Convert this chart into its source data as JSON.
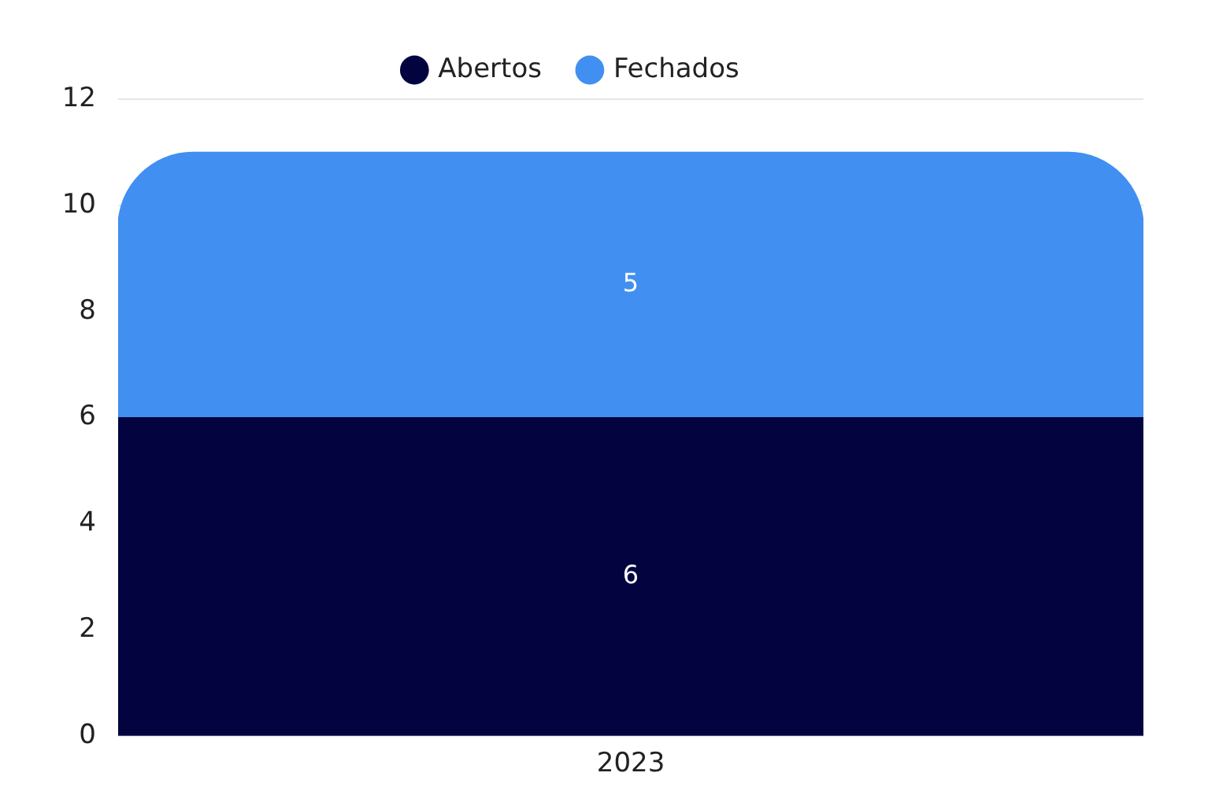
{
  "chart_data": {
    "type": "bar",
    "categories": [
      "2023"
    ],
    "series": [
      {
        "name": "Abertos",
        "color": "#02033f",
        "values": [
          6
        ]
      },
      {
        "name": "Fechados",
        "color": "#418ff1",
        "values": [
          5
        ]
      }
    ],
    "stacked": true,
    "ylim": [
      0,
      12
    ],
    "yticks": [
      0,
      2,
      4,
      6,
      8,
      10,
      12
    ],
    "grid": "y",
    "legend": "top",
    "data_labels": true
  }
}
